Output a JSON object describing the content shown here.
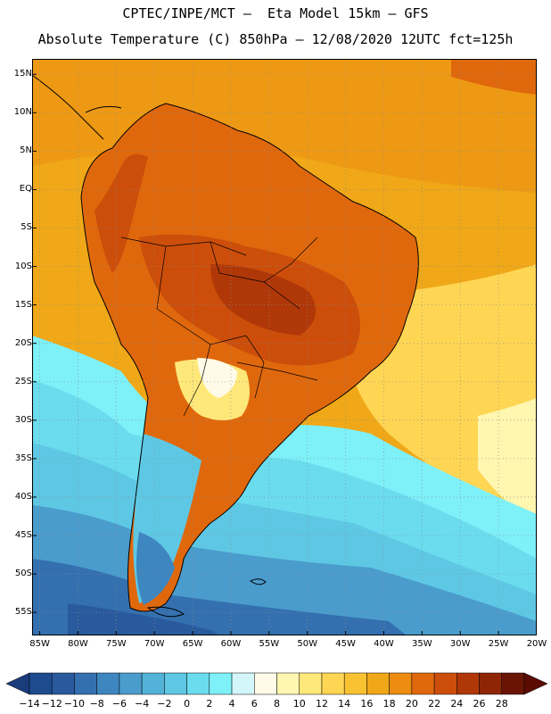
{
  "header": {
    "title_line1": "CPTEC/INPE/MCT –  Eta Model 15km – GFS",
    "title_line2": "Absolute Temperature (C) 850hPa – 12/08/2020 12UTC fct=125h"
  },
  "map": {
    "lat_labels": [
      "15N",
      "10N",
      "5N",
      "EQ",
      "5S",
      "10S",
      "15S",
      "20S",
      "25S",
      "30S",
      "35S",
      "40S",
      "45S",
      "50S",
      "55S"
    ],
    "lon_labels": [
      "85W",
      "80W",
      "75W",
      "70W",
      "65W",
      "60W",
      "55W",
      "50W",
      "45W",
      "40W",
      "35W",
      "30W",
      "25W",
      "20W"
    ],
    "lat_range": [
      17,
      -58
    ],
    "lon_range": [
      -86,
      -20
    ],
    "field_description_zones": [
      "warm-north",
      "cold-south"
    ]
  },
  "colorbar": {
    "levels": [
      "-14",
      "-12",
      "-10",
      "-8",
      "-6",
      "-4",
      "-2",
      "0",
      "2",
      "4",
      "6",
      "8",
      "10",
      "12",
      "14",
      "16",
      "18",
      "20",
      "22",
      "24",
      "26",
      "28"
    ],
    "colors": [
      "#1e4a8e",
      "#2a5a9e",
      "#3470b0",
      "#3e86c0",
      "#4a9ccc",
      "#52b2d8",
      "#5ec8e4",
      "#6adcee",
      "#7ef0f8",
      "#d2f6fa",
      "#fffbe8",
      "#fff6b0",
      "#ffe87a",
      "#ffd654",
      "#f8c232",
      "#f0a818",
      "#ec8c10",
      "#e0680c",
      "#cc4e0a",
      "#b03808",
      "#8e2606",
      "#6a1404"
    ],
    "low_arrow_color": "#1a3c7c",
    "high_arrow_color": "#5a0c02"
  }
}
